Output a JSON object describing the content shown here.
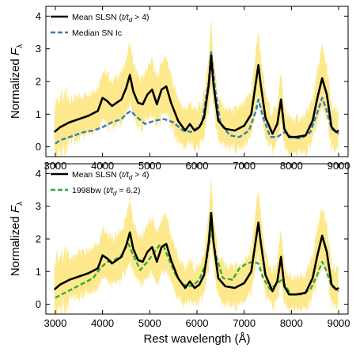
{
  "chart_data": [
    {
      "type": "line",
      "panel": "top",
      "xlim": [
        2800,
        9200
      ],
      "ylim": [
        -0.3,
        4.3
      ],
      "x_ticks": [
        "3000",
        "4000",
        "5000",
        "6000",
        "7000",
        "8000",
        "9000"
      ],
      "y_ticks": [
        "0",
        "1",
        "2",
        "3",
        "4"
      ],
      "ylabel_main": "Normalized ",
      "ylabel_sym": "F",
      "ylabel_sub": "λ",
      "legend_position": "top-left",
      "colors": {
        "band": "#fde98c",
        "mean": "#000000",
        "compare": "#2f7fbf"
      },
      "series": [
        {
          "name": "Mean SLSN (t/t_d > 4)",
          "legend_parts": [
            "Mean SLSN (",
            "t/t",
            "d",
            " > 4)"
          ],
          "style": "solid",
          "x": [
            2980,
            3100,
            3300,
            3500,
            3700,
            3900,
            4000,
            4100,
            4200,
            4300,
            4400,
            4500,
            4580,
            4650,
            4750,
            4850,
            4950,
            5050,
            5150,
            5250,
            5350,
            5450,
            5600,
            5750,
            5850,
            5950,
            6050,
            6150,
            6250,
            6300,
            6350,
            6450,
            6600,
            6800,
            7000,
            7150,
            7250,
            7300,
            7350,
            7450,
            7600,
            7700,
            7780,
            7850,
            7950,
            8100,
            8300,
            8450,
            8550,
            8650,
            8750,
            8850,
            8950,
            9000
          ],
          "y": [
            0.45,
            0.6,
            0.75,
            0.85,
            0.95,
            1.1,
            1.5,
            1.4,
            1.25,
            1.35,
            1.45,
            1.8,
            2.2,
            1.7,
            1.35,
            1.3,
            1.6,
            1.75,
            1.3,
            1.75,
            1.85,
            1.35,
            0.8,
            0.5,
            0.7,
            0.5,
            0.6,
            0.9,
            1.9,
            2.8,
            1.9,
            0.8,
            0.55,
            0.5,
            0.65,
            1.0,
            2.0,
            2.5,
            1.9,
            0.9,
            0.4,
            0.7,
            1.45,
            0.55,
            0.3,
            0.3,
            0.35,
            0.8,
            1.5,
            2.1,
            1.6,
            0.6,
            0.45,
            0.5
          ]
        },
        {
          "name": "Median SN Ic",
          "legend_parts": [
            "Median SN Ic"
          ],
          "style": "dashed",
          "x": [
            3000,
            3100,
            3200,
            3400,
            3600,
            3800,
            4000,
            4200,
            4400,
            4500,
            4600,
            4700,
            4900,
            5100,
            5300,
            5500,
            5700,
            5900,
            6100,
            6250,
            6300,
            6380,
            6500,
            6700,
            6900,
            7100,
            7250,
            7300,
            7400,
            7550,
            7700,
            7850,
            8000,
            8200,
            8400,
            8550,
            8650,
            8750,
            8850,
            9000
          ],
          "y": [
            0.1,
            0.2,
            0.25,
            0.35,
            0.45,
            0.5,
            0.6,
            0.75,
            0.85,
            1.0,
            1.1,
            0.95,
            0.7,
            0.8,
            0.85,
            0.75,
            0.5,
            0.45,
            0.7,
            2.0,
            2.9,
            1.8,
            0.7,
            0.35,
            0.3,
            0.5,
            1.1,
            1.45,
            0.9,
            0.3,
            0.3,
            0.45,
            0.3,
            0.25,
            0.45,
            1.05,
            1.5,
            1.1,
            0.55,
            0.4
          ]
        }
      ]
    },
    {
      "type": "line",
      "panel": "bottom",
      "xlim": [
        2800,
        9200
      ],
      "ylim": [
        -0.3,
        4.3
      ],
      "x_ticks": [
        "3000",
        "4000",
        "5000",
        "6000",
        "7000",
        "8000",
        "9000"
      ],
      "y_ticks": [
        "0",
        "1",
        "2",
        "3",
        "4"
      ],
      "xlabel": "Rest wavelength (Å)",
      "ylabel_main": "Normalized ",
      "ylabel_sym": "F",
      "ylabel_sub": "λ",
      "legend_position": "top-left",
      "colors": {
        "band": "#fde98c",
        "mean": "#000000",
        "compare": "#3aa83a"
      },
      "series": [
        {
          "name": "Mean SLSN (t/t_d > 4)",
          "legend_parts": [
            "Mean SLSN (",
            "t/t",
            "d",
            " > 4)"
          ],
          "style": "solid",
          "x": [
            2980,
            3100,
            3300,
            3500,
            3700,
            3900,
            4000,
            4100,
            4200,
            4300,
            4400,
            4500,
            4580,
            4650,
            4750,
            4850,
            4950,
            5050,
            5150,
            5250,
            5350,
            5450,
            5600,
            5750,
            5850,
            5950,
            6050,
            6150,
            6250,
            6300,
            6350,
            6450,
            6600,
            6800,
            7000,
            7150,
            7250,
            7300,
            7350,
            7450,
            7600,
            7700,
            7780,
            7850,
            7950,
            8100,
            8300,
            8450,
            8550,
            8650,
            8750,
            8850,
            8950,
            9000
          ],
          "y": [
            0.45,
            0.6,
            0.75,
            0.85,
            0.95,
            1.1,
            1.5,
            1.4,
            1.25,
            1.35,
            1.45,
            1.8,
            2.2,
            1.7,
            1.35,
            1.3,
            1.6,
            1.75,
            1.3,
            1.75,
            1.85,
            1.35,
            0.8,
            0.5,
            0.7,
            0.5,
            0.6,
            0.9,
            1.9,
            2.8,
            1.9,
            0.8,
            0.55,
            0.5,
            0.65,
            1.0,
            2.0,
            2.5,
            1.9,
            0.9,
            0.4,
            0.7,
            1.45,
            0.55,
            0.3,
            0.3,
            0.35,
            0.8,
            1.5,
            2.1,
            1.6,
            0.6,
            0.45,
            0.5
          ]
        },
        {
          "name": "1998bw (t/t_d = 6.2)",
          "legend_parts": [
            "1998bw (",
            "t/t",
            "d",
            " = 6.2)"
          ],
          "style": "dashed",
          "x": [
            3000,
            3200,
            3400,
            3600,
            3800,
            3950,
            4100,
            4250,
            4400,
            4500,
            4550,
            4650,
            4800,
            4950,
            5100,
            5200,
            5300,
            5400,
            5550,
            5700,
            5900,
            6050,
            6200,
            6300,
            6400,
            6550,
            6750,
            6900,
            7050,
            7200,
            7300,
            7400,
            7550,
            7700,
            7800,
            7900,
            8000,
            8200,
            8400,
            8550,
            8650,
            8750,
            8850,
            9000
          ],
          "y": [
            0.2,
            0.35,
            0.5,
            0.65,
            0.8,
            1.1,
            1.3,
            1.35,
            1.5,
            1.75,
            1.85,
            1.5,
            1.05,
            1.3,
            1.6,
            1.8,
            1.75,
            1.4,
            0.9,
            0.6,
            0.55,
            0.75,
            1.3,
            2.3,
            1.5,
            0.8,
            0.75,
            1.1,
            1.25,
            1.3,
            1.25,
            0.8,
            0.45,
            0.65,
            0.75,
            0.5,
            0.3,
            0.3,
            0.45,
            0.9,
            1.3,
            1.0,
            0.55,
            0.4
          ]
        }
      ]
    }
  ]
}
